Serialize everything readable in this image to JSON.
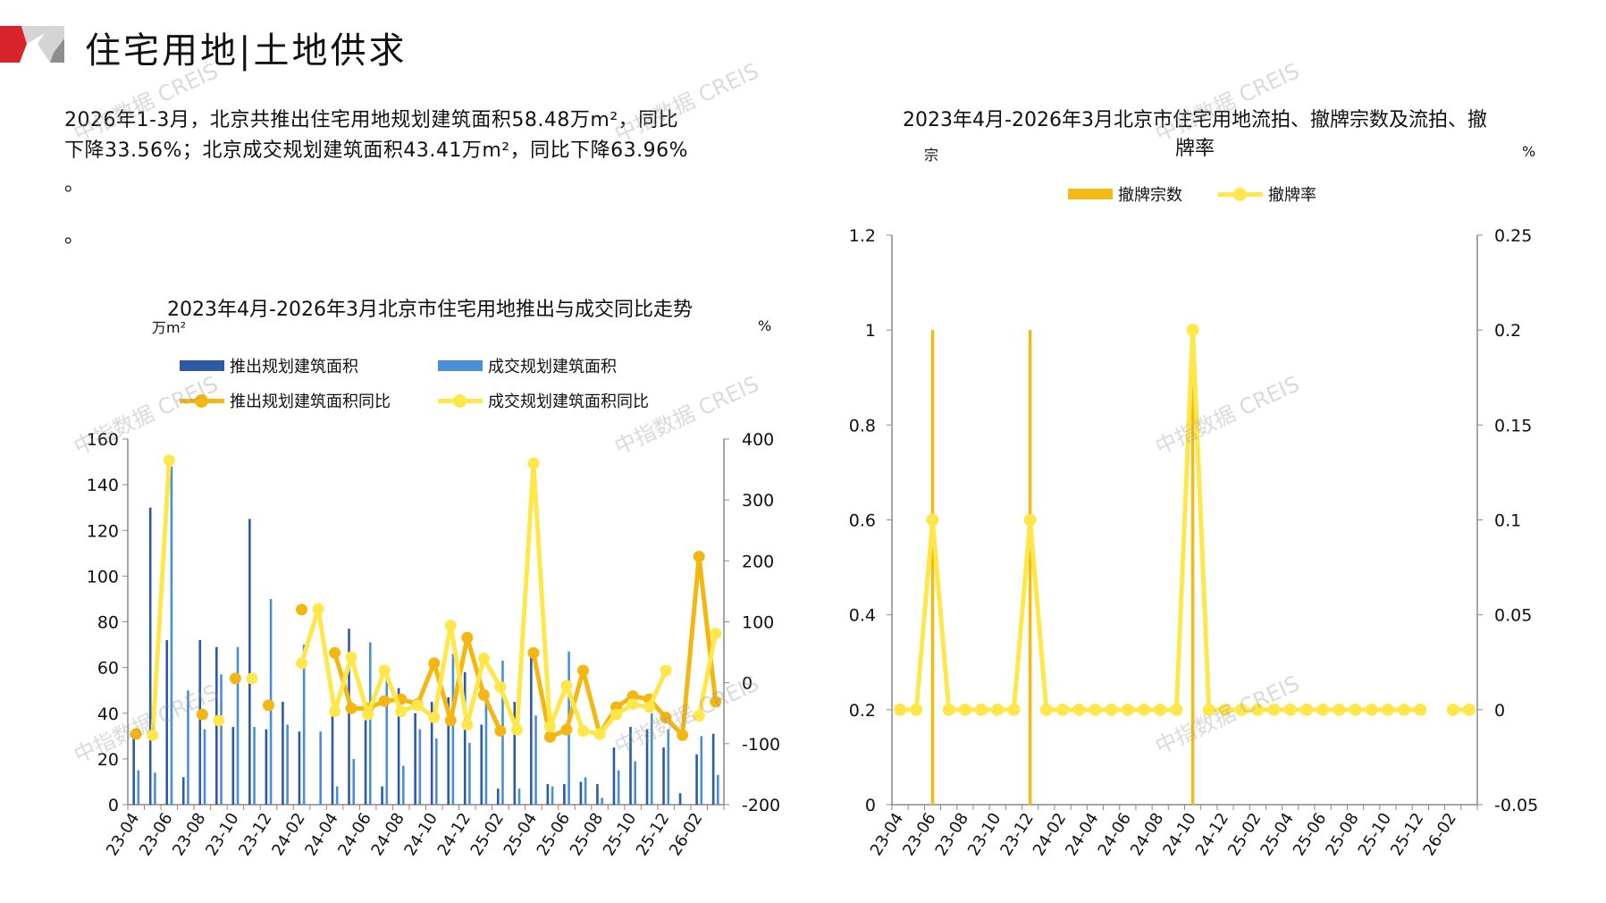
{
  "header": {
    "title": "住宅用地|土地供求",
    "brand_colors": {
      "red": "#d9232a",
      "gray": "#b9b9b9"
    }
  },
  "summary": {
    "line1": "2026年1-3月，北京共推出住宅用地规划建筑面积58.48万m²，同比",
    "line2": "下降33.56%；北京成交规划建筑面积43.41万m²，同比下降63.96%",
    "line3": "。",
    "line4": "。"
  },
  "watermark": "中指数据 CREIS",
  "chart_data": [
    {
      "type": "bar+line",
      "title": "2023年4月-2026年3月北京市住宅用地推出与成交同比走势",
      "ylabel_left": "万m²",
      "ylabel_right": "%",
      "ylim_left": [
        0,
        160
      ],
      "yticks_left": [
        0,
        20,
        40,
        60,
        80,
        100,
        120,
        140,
        160
      ],
      "ylim_right": [
        -200,
        400
      ],
      "yticks_right": [
        -200,
        -100,
        0,
        100,
        200,
        300,
        400
      ],
      "legend_position": "top",
      "categories": [
        "23-04",
        "23-05",
        "23-06",
        "23-07",
        "23-08",
        "23-09",
        "23-10",
        "23-11",
        "23-12",
        "24-01",
        "24-02",
        "24-03",
        "24-04",
        "24-05",
        "24-06",
        "24-07",
        "24-08",
        "24-09",
        "24-10",
        "24-11",
        "24-12",
        "25-01",
        "25-02",
        "25-03",
        "25-04",
        "25-05",
        "25-06",
        "25-07",
        "25-08",
        "25-09",
        "25-10",
        "25-11",
        "25-12",
        "26-01",
        "26-02",
        "26-03"
      ],
      "xtick_labels": [
        "23-04",
        "23-06",
        "23-08",
        "23-10",
        "23-12",
        "24-02",
        "24-04",
        "24-06",
        "24-08",
        "24-10",
        "24-12",
        "25-02",
        "25-04",
        "25-06",
        "25-08",
        "25-10",
        "25-12",
        "26-02"
      ],
      "series": [
        {
          "name": "推出规划建筑面积",
          "kind": "bar",
          "axis": "left",
          "color": "#2d59a6",
          "values": [
            33,
            130,
            72,
            12,
            72,
            69,
            34,
            125,
            33,
            45,
            32,
            0,
            40,
            77,
            37,
            8,
            51,
            40,
            45,
            47,
            58,
            35,
            7,
            45,
            66,
            9,
            9,
            10,
            9,
            25,
            34,
            33,
            25,
            5,
            22,
            31
          ]
        },
        {
          "name": "成交规划建筑面积",
          "kind": "bar",
          "axis": "left",
          "color": "#4a8fd6",
          "values": [
            15,
            14,
            148,
            50,
            33,
            57,
            69,
            34,
            90,
            35,
            70,
            32,
            8,
            20,
            71,
            57,
            17,
            33,
            29,
            66,
            27,
            46,
            63,
            7,
            39,
            8,
            67,
            12,
            3,
            15,
            19,
            40,
            33,
            0,
            30,
            13
          ]
        },
        {
          "name": "推出规划建筑面积同比",
          "kind": "line",
          "axis": "right",
          "color": "#f4b610",
          "values": [
            -84,
            null,
            null,
            null,
            -52,
            null,
            7,
            null,
            -37,
            null,
            120,
            null,
            49,
            -42,
            -42,
            -30,
            -27,
            -35,
            32,
            -62,
            74,
            -20,
            -79,
            null,
            49,
            -89,
            -77,
            20,
            -84,
            -40,
            -22,
            -27,
            -57,
            -86,
            207,
            -31
          ]
        },
        {
          "name": "成交规划建筑面积同比",
          "kind": "line",
          "axis": "right",
          "color": "#ffe74a",
          "values": [
            null,
            -86,
            365,
            null,
            null,
            -62,
            null,
            7,
            null,
            null,
            32,
            121,
            -47,
            42,
            -52,
            20,
            -47,
            -37,
            -57,
            94,
            -69,
            40,
            -7,
            -77,
            360,
            -72,
            -5,
            -79,
            -84,
            -52,
            -35,
            -40,
            20,
            null,
            -54,
            81
          ]
        }
      ]
    },
    {
      "type": "bar+line",
      "title": "2023年4月-2026年3月北京市住宅用地流拍、撤牌宗数及流拍、撤",
      "title_line2": "牌率",
      "ylabel_left": "宗",
      "ylabel_right": "%",
      "ylim_left": [
        0,
        1.2
      ],
      "yticks_left": [
        "0",
        "0.2",
        "0.4",
        "0.6",
        "0.8",
        "1",
        "1.2"
      ],
      "ylim_right": [
        -0.05,
        0.25
      ],
      "yticks_right": [
        "-0.05",
        "0",
        "0.05",
        "0.1",
        "0.15",
        "0.2",
        "0.25"
      ],
      "legend_position": "top",
      "categories": [
        "23-04",
        "23-05",
        "23-06",
        "23-07",
        "23-08",
        "23-09",
        "23-10",
        "23-11",
        "23-12",
        "24-01",
        "24-02",
        "24-03",
        "24-04",
        "24-05",
        "24-06",
        "24-07",
        "24-08",
        "24-09",
        "24-10",
        "24-11",
        "24-12",
        "25-01",
        "25-02",
        "25-03",
        "25-04",
        "25-05",
        "25-06",
        "25-07",
        "25-08",
        "25-09",
        "25-10",
        "25-11",
        "25-12",
        "26-01",
        "26-02",
        "26-03"
      ],
      "xtick_labels": [
        "23-04",
        "23-06",
        "23-08",
        "23-10",
        "23-12",
        "24-02",
        "24-04",
        "24-06",
        "24-08",
        "24-10",
        "24-12",
        "25-02",
        "25-04",
        "25-06",
        "25-08",
        "25-10",
        "25-12",
        "26-02"
      ],
      "series": [
        {
          "name": "撤牌宗数",
          "kind": "bar",
          "axis": "left",
          "color": "#f5bb12",
          "values": [
            0,
            0,
            1,
            0,
            0,
            0,
            0,
            0,
            1,
            0,
            0,
            0,
            0,
            0,
            0,
            0,
            0,
            0,
            1,
            0,
            0,
            0,
            0,
            0,
            0,
            0,
            0,
            0,
            0,
            0,
            0,
            0,
            0,
            0,
            0,
            0
          ]
        },
        {
          "name": "撤牌率",
          "kind": "line",
          "axis": "right",
          "color": "#ffe74a",
          "values": [
            0,
            0,
            0.1,
            0,
            0,
            0,
            0,
            0,
            0.1,
            0,
            0,
            0,
            0,
            0,
            0,
            0,
            0,
            0,
            0.2,
            0,
            0,
            0,
            0,
            0,
            0,
            0,
            0,
            0,
            0,
            0,
            0,
            0,
            0,
            null,
            0,
            0
          ]
        }
      ]
    }
  ]
}
